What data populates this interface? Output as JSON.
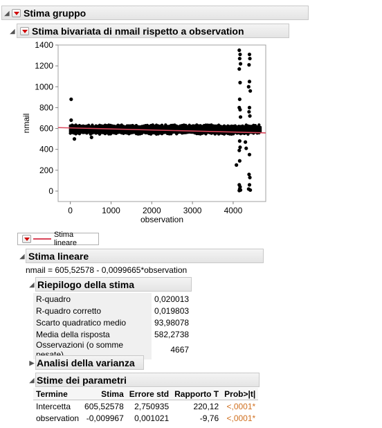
{
  "outer_header": {
    "title": "Stima gruppo"
  },
  "bivariate_header": {
    "title": "Stima bivariata di nmail rispetto a observation"
  },
  "chart_data": {
    "type": "scatter",
    "xlabel": "observation",
    "ylabel": "nmail",
    "xlim": [
      -300,
      4800
    ],
    "ylim": [
      -100,
      1400
    ],
    "x_ticks": [
      0,
      1000,
      2000,
      3000,
      4000
    ],
    "y_ticks": [
      0,
      200,
      400,
      600,
      800,
      1000,
      1200,
      1400
    ],
    "x_tick_labels": [
      "0",
      "1000",
      "2000",
      "3000",
      "4000"
    ],
    "y_tick_labels": [
      "0",
      "200",
      "400",
      "600",
      "800",
      "1000",
      "1200",
      "1400"
    ],
    "band": {
      "x_start": 0,
      "x_end": 4667,
      "y_center": 590,
      "y_half_width": 35
    },
    "outlier_points": [
      {
        "x": 20,
        "y": 880
      },
      {
        "x": 20,
        "y": 680
      },
      {
        "x": 100,
        "y": 500
      },
      {
        "x": 520,
        "y": 515
      },
      {
        "x": 4150,
        "y": 1350
      },
      {
        "x": 4170,
        "y": 1310
      },
      {
        "x": 4160,
        "y": 1270
      },
      {
        "x": 4180,
        "y": 1220
      },
      {
        "x": 4150,
        "y": 1170
      },
      {
        "x": 4170,
        "y": 1040
      },
      {
        "x": 4160,
        "y": 880
      },
      {
        "x": 4150,
        "y": 800
      },
      {
        "x": 4170,
        "y": 780
      },
      {
        "x": 4180,
        "y": 710
      },
      {
        "x": 4160,
        "y": 480
      },
      {
        "x": 4170,
        "y": 420
      },
      {
        "x": 4150,
        "y": 390
      },
      {
        "x": 4080,
        "y": 250
      },
      {
        "x": 4160,
        "y": 290
      },
      {
        "x": 4150,
        "y": 60
      },
      {
        "x": 4170,
        "y": 40
      },
      {
        "x": 4160,
        "y": 20
      },
      {
        "x": 4180,
        "y": 10
      },
      {
        "x": 4150,
        "y": 5
      },
      {
        "x": 4400,
        "y": 1310
      },
      {
        "x": 4410,
        "y": 1270
      },
      {
        "x": 4390,
        "y": 1210
      },
      {
        "x": 4400,
        "y": 1050
      },
      {
        "x": 4380,
        "y": 1000
      },
      {
        "x": 4420,
        "y": 960
      },
      {
        "x": 4400,
        "y": 800
      },
      {
        "x": 4390,
        "y": 760
      },
      {
        "x": 4410,
        "y": 720
      },
      {
        "x": 4300,
        "y": 470
      },
      {
        "x": 4320,
        "y": 410
      },
      {
        "x": 4400,
        "y": 350
      },
      {
        "x": 4390,
        "y": 160
      },
      {
        "x": 4410,
        "y": 130
      },
      {
        "x": 4400,
        "y": 60
      },
      {
        "x": 4380,
        "y": 20
      },
      {
        "x": 4420,
        "y": 10
      }
    ],
    "fit_line": {
      "intercept": 605.52578,
      "slope": -0.0099665,
      "x_start": -300,
      "x_end": 4800,
      "color": "#d9455a"
    }
  },
  "legend": {
    "label": "Stima lineare"
  },
  "linear_fit": {
    "title": "Stima lineare",
    "equation": "nmail = 605,52578 - 0,0099665*observation"
  },
  "summary": {
    "title": "Riepilogo della stima",
    "rows": [
      {
        "label": "R-quadro",
        "value": "0,020013"
      },
      {
        "label": "R-quadro corretto",
        "value": "0,019803"
      },
      {
        "label": "Scarto quadratico medio",
        "value": "93,98078"
      },
      {
        "label": "Media della risposta",
        "value": "582,2738"
      },
      {
        "label": "Osservazioni (o somme pesate)",
        "value": "4667"
      }
    ]
  },
  "anova": {
    "title": "Analisi della varianza"
  },
  "params": {
    "title": "Stime dei parametri",
    "headers": [
      "Termine",
      "Stima",
      "Errore std",
      "Rapporto T",
      "Prob>|t|"
    ],
    "rows": [
      {
        "term": "Intercetta",
        "estimate": "605,52578",
        "stderr": "2,750935",
        "t": "220,12",
        "p": "<,0001*"
      },
      {
        "term": "observation",
        "estimate": "-0,009967",
        "stderr": "0,001021",
        "t": "-9,76",
        "p": "<,0001*"
      }
    ]
  }
}
